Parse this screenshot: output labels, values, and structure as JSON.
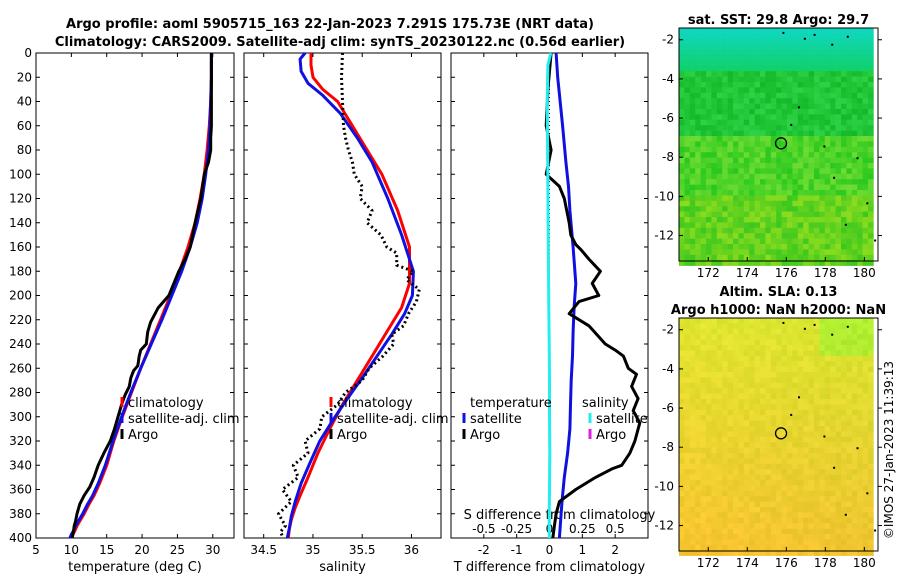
{
  "figure": {
    "title_line1": "Argo profile: aoml 5905715_163 22-Jan-2023 7.291S 175.73E (NRT data)",
    "title_line2": "Climatology: CARS2009. Satellite-adj clim: synTS_20230122.nc (0.56d earlier)",
    "footer_stamp": "©IMOS 27-Jan-2023 11:39:13"
  },
  "colors": {
    "climatology": "#ff0000",
    "satellite": "#1010e0",
    "argo": "#000000",
    "salinity_diff_satellite": "#22eeee",
    "salinity_diff_argo": "#dd22dd"
  },
  "chart_data": [
    {
      "type": "line",
      "name": "temperature-profile",
      "xlabel": "temperature (deg C)",
      "ylabel": "",
      "xlim": [
        5,
        33
      ],
      "ylim": [
        0,
        400
      ],
      "y_reversed": true,
      "xticks": [
        5,
        10,
        15,
        20,
        25,
        30
      ],
      "yticks": [
        0,
        20,
        40,
        60,
        80,
        100,
        120,
        140,
        160,
        180,
        200,
        220,
        240,
        260,
        280,
        300,
        320,
        340,
        360,
        380,
        400
      ],
      "legend": [
        "climatology",
        "satellite-adj. clim",
        "Argo"
      ],
      "series": [
        {
          "name": "climatology",
          "color_key": "climatology",
          "x": [
            29.8,
            29.8,
            29.7,
            29.5,
            29.2,
            28.8,
            28.2,
            27.5,
            26.5,
            25.3,
            24,
            22.6,
            21.2,
            19.8,
            18.5,
            17.2,
            16,
            15,
            14,
            13.2,
            12.5,
            11.8,
            11.2,
            10.8,
            10.5,
            10.2,
            10
          ],
          "y": [
            0,
            20,
            40,
            60,
            80,
            100,
            120,
            140,
            160,
            180,
            200,
            220,
            240,
            260,
            280,
            300,
            320,
            340,
            355,
            365,
            372,
            380,
            386,
            390,
            394,
            397,
            400
          ]
        },
        {
          "name": "satellite-adj. clim",
          "color_key": "satellite",
          "x": [
            29.8,
            29.8,
            29.7,
            29.6,
            29.4,
            29,
            28.5,
            27.8,
            26.8,
            25.6,
            24.2,
            22.8,
            21.3,
            19.8,
            18.4,
            17.1,
            15.9,
            14.8,
            13.8,
            13,
            12.3,
            11.6,
            11,
            10.6,
            10.3,
            10,
            9.8
          ],
          "y": [
            0,
            20,
            40,
            60,
            80,
            100,
            120,
            140,
            160,
            180,
            200,
            220,
            240,
            260,
            280,
            300,
            320,
            340,
            355,
            365,
            372,
            380,
            386,
            390,
            394,
            397,
            400
          ]
        },
        {
          "name": "Argo",
          "color_key": "argo",
          "x": [
            29.8,
            29.8,
            29.8,
            29.8,
            29.7,
            29.7,
            29.4,
            28.8,
            28.3,
            27.5,
            26.8,
            26.1,
            25.2,
            23.8,
            22.3,
            21.2,
            20.8,
            20.6,
            19.8,
            19.6,
            19.4,
            18.8,
            18.4,
            18.2,
            17.6,
            17.1,
            16.6,
            16.1,
            15.5,
            14.6,
            13.8,
            13.2,
            12.6,
            11.8,
            11.2,
            10.8,
            10.6,
            10.4,
            10.3,
            10.1
          ],
          "y": [
            0,
            20,
            40,
            60,
            70,
            80,
            90,
            100,
            120,
            140,
            160,
            170,
            180,
            200,
            210,
            222,
            230,
            240,
            245,
            250,
            258,
            262,
            268,
            275,
            282,
            290,
            300,
            310,
            320,
            330,
            340,
            350,
            358,
            365,
            372,
            380,
            386,
            390,
            395,
            400
          ]
        }
      ]
    },
    {
      "type": "line",
      "name": "salinity-profile",
      "xlabel": "salinity",
      "ylabel": "",
      "xlim": [
        34.3,
        36.3
      ],
      "ylim": [
        0,
        400
      ],
      "y_reversed": true,
      "xticks": [
        34.5,
        35,
        35.5,
        36
      ],
      "xticklabels": [
        "34.5",
        "35",
        "35.5",
        "36"
      ],
      "legend": [
        "climatology",
        "satellite-adj. clim",
        "Argo"
      ],
      "series": [
        {
          "name": "climatology",
          "color_key": "climatology",
          "x": [
            34.98,
            34.98,
            35,
            35.1,
            35.25,
            35.4,
            35.55,
            35.7,
            35.86,
            35.98,
            35.98,
            35.9,
            35.75,
            35.6,
            35.45,
            35.3,
            35.17,
            35.05,
            34.95,
            34.87,
            34.82,
            34.78,
            34.76,
            34.75
          ],
          "y": [
            0,
            10,
            20,
            30,
            40,
            60,
            80,
            100,
            130,
            160,
            190,
            210,
            230,
            250,
            270,
            290,
            310,
            330,
            350,
            365,
            375,
            385,
            393,
            400
          ]
        },
        {
          "name": "satellite-adj. clim",
          "color_key": "satellite",
          "x": [
            34.92,
            34.87,
            34.88,
            34.95,
            35.1,
            35.28,
            35.45,
            35.6,
            35.76,
            35.9,
            36.02,
            36.01,
            35.93,
            35.8,
            35.65,
            35.5,
            35.35,
            35.2,
            35.07,
            34.97,
            34.88,
            34.82,
            34.78,
            34.76,
            34.74
          ],
          "y": [
            0,
            5,
            15,
            25,
            35,
            50,
            70,
            90,
            120,
            150,
            180,
            200,
            215,
            232,
            250,
            268,
            285,
            303,
            320,
            338,
            355,
            370,
            382,
            392,
            400
          ]
        },
        {
          "name": "Argo",
          "color_key": "argo",
          "x": [
            35.3,
            35.29,
            35.3,
            35.31,
            35.33,
            35.36,
            35.4,
            35.42,
            35.5,
            35.48,
            35.6,
            35.55,
            35.69,
            35.75,
            35.85,
            35.85,
            36.02,
            35.95,
            36.08,
            36.05,
            35.97,
            35.92,
            35.8,
            35.82,
            35.71,
            35.57,
            35.5,
            35.33,
            35.25,
            35.09,
            35.07,
            34.92,
            34.95,
            34.8,
            34.85,
            34.69,
            34.78,
            34.65,
            34.72,
            34.67,
            34.7
          ],
          "y": [
            0,
            20,
            40,
            60,
            70,
            80,
            90,
            100,
            110,
            120,
            130,
            140,
            150,
            160,
            165,
            175,
            180,
            187,
            195,
            205,
            215,
            225,
            232,
            240,
            250,
            260,
            270,
            280,
            290,
            300,
            310,
            320,
            330,
            340,
            350,
            360,
            370,
            380,
            390,
            395,
            400
          ]
        }
      ]
    },
    {
      "type": "line",
      "name": "difference-profile",
      "xlabel": "T difference from climatology",
      "top_label": "S difference from climatology",
      "xlim": [
        -3,
        3
      ],
      "ylim": [
        0,
        400
      ],
      "y_reversed": true,
      "xticks": [
        -2,
        -1,
        0,
        1,
        2
      ],
      "xticklabels": [
        "-2",
        "-1",
        "0",
        "1",
        "2"
      ],
      "s_xticks": [
        -0.5,
        -0.25,
        0,
        0.25,
        0.5
      ],
      "s_xticklabels": [
        "-0.5",
        "-0.25",
        "0",
        "0.25",
        "0.5"
      ],
      "legend_left": [
        "temperature",
        "satellite",
        "Argo"
      ],
      "legend_right": [
        "salinity",
        "satellite",
        "Argo"
      ],
      "series": [
        {
          "name": "T satellite",
          "color_key": "satellite",
          "x": [
            0.2,
            0.25,
            0.4,
            0.5,
            0.58,
            0.62,
            0.72,
            0.8,
            0.75,
            0.72,
            0.7,
            0.66,
            0.64,
            0.62,
            0.55,
            0.45,
            0.38,
            0.34,
            0.3
          ],
          "y": [
            0,
            20,
            60,
            90,
            110,
            130,
            160,
            190,
            210,
            230,
            250,
            270,
            290,
            310,
            330,
            350,
            370,
            385,
            400
          ]
        },
        {
          "name": "T Argo",
          "color_key": "argo",
          "x": [
            0.05,
            -0.05,
            -0.1,
            0.05,
            -0.1,
            0.3,
            0.45,
            0.6,
            0.65,
            0.8,
            0.95,
            1.2,
            1.55,
            1.3,
            1.5,
            0.9,
            0.6,
            1.2,
            1.7,
            2.0,
            2.25,
            2.4,
            2.65,
            2.5,
            2.7,
            2.55,
            2.75,
            2.6,
            2.45,
            2.2,
            1.9,
            1.4,
            0.8,
            0.3,
            0.2,
            0.15,
            0.1
          ],
          "y": [
            0,
            30,
            60,
            80,
            100,
            110,
            120,
            140,
            150,
            158,
            162,
            170,
            180,
            190,
            200,
            205,
            215,
            225,
            240,
            245,
            250,
            260,
            265,
            275,
            285,
            295,
            305,
            320,
            330,
            340,
            343,
            350,
            360,
            370,
            380,
            390,
            400
          ]
        },
        {
          "name": "S satellite",
          "color_key": "salinity_diff_satellite",
          "x": [
            0.04,
            -0.05,
            -0.07,
            -0.06,
            -0.05,
            -0.04,
            -0.03,
            -0.02,
            -0.01,
            0,
            0,
            0.01,
            0,
            -0.01,
            -0.01,
            0
          ],
          "y": [
            0,
            10,
            40,
            70,
            110,
            150,
            180,
            210,
            240,
            270,
            300,
            330,
            360,
            380,
            395,
            400
          ]
        },
        {
          "name": "S Argo",
          "color_key": "salinity_diff_argo",
          "x": [],
          "y": []
        }
      ]
    },
    {
      "type": "heatmap",
      "name": "sst-map",
      "title": "sat. SST: 29.8 Argo: 29.7",
      "xlim": [
        170.5,
        180.7
      ],
      "ylim": [
        -13.3,
        -1.4
      ],
      "xticks": [
        172,
        174,
        176,
        178,
        180
      ],
      "yticks": [
        -2,
        -4,
        -6,
        -8,
        -10,
        -12
      ],
      "marker": {
        "lon": 175.73,
        "lat": -7.29
      }
    },
    {
      "type": "heatmap",
      "name": "sla-map",
      "title_line1": "Altim. SLA: 0.13",
      "title_line2": "Argo h1000: NaN h2000: NaN",
      "xlim": [
        170.5,
        180.7
      ],
      "ylim": [
        -13.3,
        -1.4
      ],
      "xticks": [
        172,
        174,
        176,
        178,
        180
      ],
      "yticks": [
        -2,
        -4,
        -6,
        -8,
        -10,
        -12
      ],
      "marker": {
        "lon": 175.73,
        "lat": -7.29
      }
    }
  ]
}
